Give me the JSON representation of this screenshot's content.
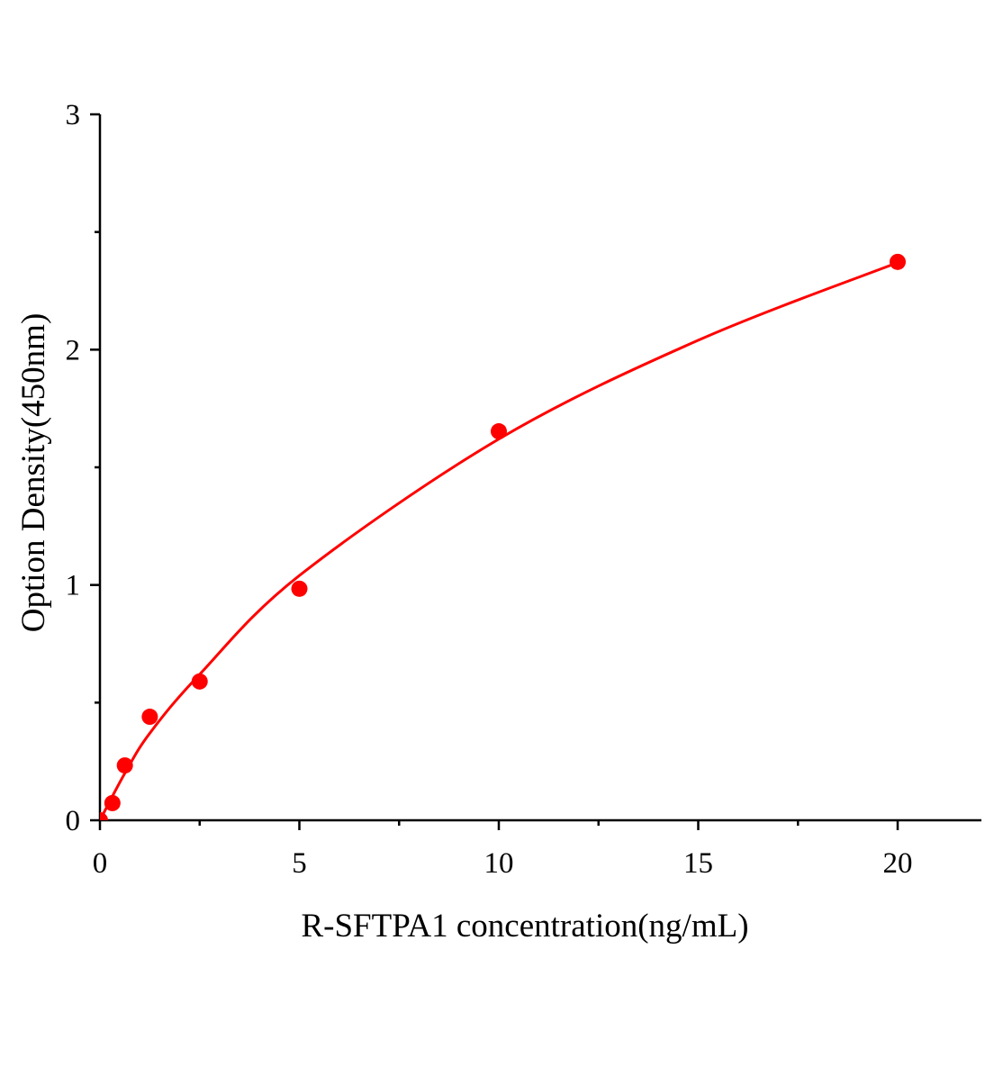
{
  "chart_data": {
    "type": "scatter",
    "title": "",
    "xlabel": "R-SFTPA1 concentration(ng/mL)",
    "ylabel": "Option Density(450nm)",
    "xlim": [
      0,
      22.1
    ],
    "ylim": [
      0,
      3
    ],
    "xticks": [
      0,
      5,
      10,
      15,
      20
    ],
    "xtick_labels": [
      "0",
      "5",
      "10",
      "15",
      "20"
    ],
    "xminor": [
      2.5,
      7.5,
      12.5,
      17.5
    ],
    "yticks": [
      0,
      1,
      2,
      3
    ],
    "ytick_labels": [
      "0",
      "1",
      "2",
      "3"
    ],
    "yminor": [
      0.5,
      1.5,
      2.5
    ],
    "grid": false,
    "color": "#ff0000",
    "points": [
      {
        "x": 0,
        "y": 0
      },
      {
        "x": 0.3125,
        "y": 0.073
      },
      {
        "x": 0.625,
        "y": 0.233
      },
      {
        "x": 1.25,
        "y": 0.44
      },
      {
        "x": 2.5,
        "y": 0.59
      },
      {
        "x": 5,
        "y": 0.984
      },
      {
        "x": 10,
        "y": 1.653
      },
      {
        "x": 20,
        "y": 2.373
      }
    ],
    "fit_curve": [
      {
        "x": 0,
        "y": 0
      },
      {
        "x": 0.625,
        "y": 0.2
      },
      {
        "x": 1.25,
        "y": 0.37
      },
      {
        "x": 2.5,
        "y": 0.62
      },
      {
        "x": 5,
        "y": 1.04
      },
      {
        "x": 10,
        "y": 1.62
      },
      {
        "x": 15,
        "y": 2.04
      },
      {
        "x": 20,
        "y": 2.37
      }
    ]
  }
}
